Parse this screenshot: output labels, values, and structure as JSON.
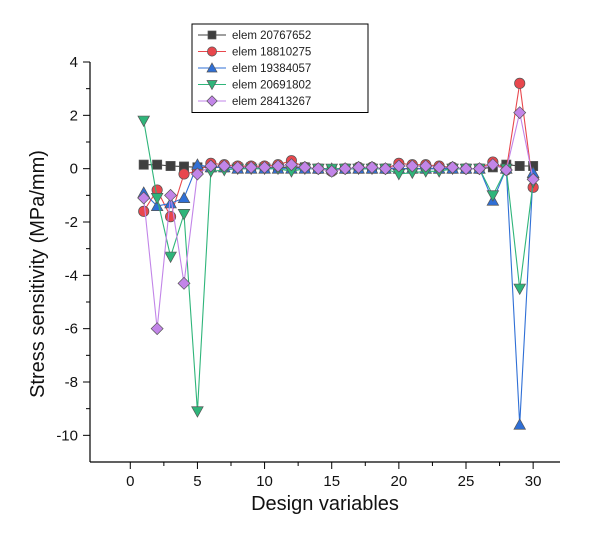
{
  "chart_data": {
    "type": "line",
    "title": "",
    "xlabel": "Design variables",
    "ylabel": "Stress sensitivity (MPa/mm)",
    "xlim": [
      -3,
      32
    ],
    "ylim": [
      -11,
      4
    ],
    "xticks": [
      0,
      5,
      10,
      15,
      20,
      25,
      30
    ],
    "yticks": [
      4,
      2,
      0,
      -2,
      -4,
      -6,
      -8,
      -10
    ],
    "grid": false,
    "legend_position": "top-center",
    "x": [
      1,
      2,
      3,
      4,
      5,
      6,
      7,
      8,
      9,
      10,
      11,
      12,
      13,
      14,
      15,
      16,
      17,
      18,
      19,
      20,
      21,
      22,
      23,
      24,
      25,
      26,
      27,
      28,
      29,
      30
    ],
    "series": [
      {
        "name": "elem 20767652",
        "marker": "square",
        "color": "#3f3f3f",
        "values": [
          0.15,
          0.15,
          0.1,
          0.08,
          0.05,
          0.05,
          0.05,
          0.05,
          0.05,
          0.05,
          0.05,
          0.05,
          0.05,
          0.0,
          -0.05,
          0.0,
          0.0,
          0.0,
          0.0,
          0.0,
          0.0,
          0.0,
          0.0,
          0.0,
          0.0,
          0.0,
          0.05,
          0.15,
          0.1,
          0.1
        ]
      },
      {
        "name": "elem 18810275",
        "marker": "circle",
        "color": "#e8474d",
        "values": [
          -1.6,
          -0.8,
          -1.8,
          -0.2,
          -0.1,
          0.2,
          0.15,
          0.1,
          0.1,
          0.1,
          0.15,
          0.3,
          0.05,
          0.0,
          -0.1,
          0.0,
          0.05,
          0.05,
          0.0,
          0.2,
          0.15,
          0.15,
          0.1,
          0.05,
          0.0,
          0.0,
          0.25,
          -0.05,
          3.2,
          -0.7
        ]
      },
      {
        "name": "elem 19384057",
        "marker": "triangle-up",
        "color": "#2f6fd6",
        "values": [
          -0.9,
          -1.4,
          -1.3,
          -1.1,
          0.15,
          0.05,
          0.05,
          0.0,
          0.0,
          0.0,
          0.0,
          0.0,
          0.0,
          0.0,
          0.0,
          0.0,
          0.0,
          0.0,
          0.0,
          0.0,
          0.0,
          0.0,
          0.0,
          0.0,
          0.0,
          0.0,
          -1.2,
          0.0,
          -9.6,
          -0.15
        ]
      },
      {
        "name": "elem 20691802",
        "marker": "triangle-down",
        "color": "#2fb57a",
        "values": [
          1.8,
          -1.1,
          -3.3,
          -1.7,
          -9.1,
          -0.1,
          -0.05,
          0.0,
          0.0,
          0.0,
          0.0,
          -0.1,
          0.0,
          0.0,
          0.0,
          0.0,
          0.0,
          0.0,
          0.0,
          -0.2,
          -0.15,
          -0.1,
          -0.1,
          0.0,
          0.0,
          0.0,
          -1.0,
          0.0,
          -4.5,
          -0.5
        ]
      },
      {
        "name": "elem 28413267",
        "marker": "diamond",
        "color": "#c285e8",
        "values": [
          -1.1,
          -6.0,
          -1.0,
          -4.3,
          -0.2,
          0.1,
          0.1,
          0.05,
          0.05,
          0.05,
          0.1,
          0.15,
          0.05,
          0.0,
          -0.1,
          0.0,
          0.05,
          0.05,
          0.0,
          0.1,
          0.1,
          0.1,
          0.05,
          0.05,
          0.0,
          0.0,
          0.15,
          -0.05,
          2.1,
          -0.4
        ]
      }
    ]
  }
}
